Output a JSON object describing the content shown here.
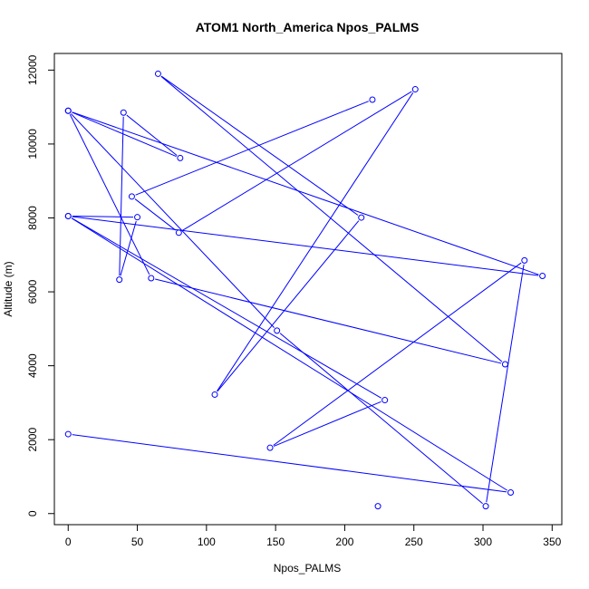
{
  "chart_data": {
    "type": "line",
    "title": "ATOM1 North_America Npos_PALMS",
    "xlabel": "Npos_PALMS",
    "ylabel": "Altitude (m)",
    "xlim": [
      -10,
      357
    ],
    "ylim": [
      -300,
      12450
    ],
    "xticks": [
      0,
      50,
      100,
      150,
      200,
      250,
      300,
      350
    ],
    "yticks": [
      0,
      2000,
      4000,
      6000,
      8000,
      10000,
      12000
    ],
    "series_color": "#0000ff",
    "marker": "open-circle",
    "series": [
      {
        "x": [
          0,
          320,
          0,
          50,
          37,
          40,
          81,
          0,
          151,
          302,
          330,
          146,
          229,
          0,
          343,
          0,
          60,
          316,
          65,
          212,
          106,
          251,
          80,
          46,
          220
        ],
        "y": [
          2150,
          570,
          8050,
          8020,
          6330,
          10850,
          9620,
          10900,
          4950,
          200,
          6850,
          1780,
          3070,
          8050,
          6430,
          10900,
          6370,
          4040,
          11900,
          8010,
          3220,
          11480,
          7600,
          8580,
          11200
        ]
      }
    ],
    "extra_points": [
      {
        "x": 224,
        "y": 200
      }
    ]
  }
}
